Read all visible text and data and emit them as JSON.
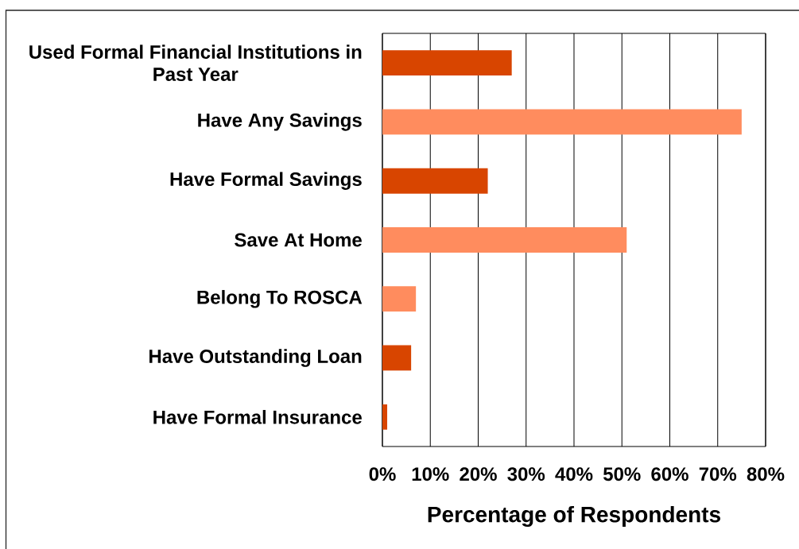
{
  "chart_data": {
    "type": "bar",
    "orientation": "horizontal",
    "categories": [
      "Used Formal Financial Institutions in Past Year",
      "Have Any Savings",
      "Have Formal Savings",
      "Save At Home",
      "Belong To ROSCA",
      "Have Outstanding Loan",
      "Have Formal Insurance"
    ],
    "values": [
      27,
      75,
      22,
      51,
      7,
      6,
      1
    ],
    "colors": [
      "#d84500",
      "#ff8c5e",
      "#d84500",
      "#ff8c5e",
      "#ff8c5e",
      "#d84500",
      "#d84500"
    ],
    "xlabel": "Percentage of Respondents",
    "xlim": [
      0,
      80
    ],
    "xticks": [
      {
        "value": 0,
        "label": "0%"
      },
      {
        "value": 10,
        "label": "10%"
      },
      {
        "value": 20,
        "label": "20%"
      },
      {
        "value": 30,
        "label": "30%"
      },
      {
        "value": 40,
        "label": "40%"
      },
      {
        "value": 50,
        "label": "50%"
      },
      {
        "value": 60,
        "label": "60%"
      },
      {
        "value": 70,
        "label": "70%"
      },
      {
        "value": 80,
        "label": "80%"
      }
    ],
    "grid": "x"
  }
}
